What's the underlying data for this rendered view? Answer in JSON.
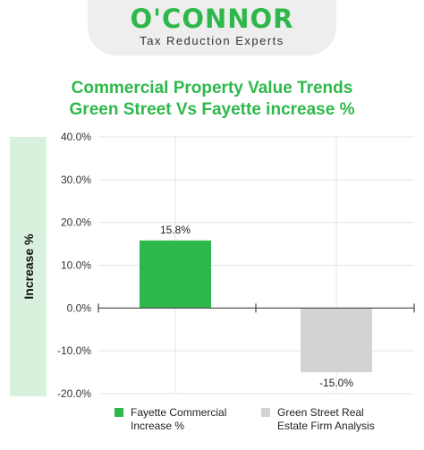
{
  "brand": {
    "logo_text": "O'CONNOR",
    "tagline": "Tax Reduction Experts"
  },
  "colors": {
    "brand_green": "#2eb84b",
    "bar_green": "#2eb84b",
    "bar_gray": "#d3d3d3",
    "ylabel_bg": "#d8f1dd"
  },
  "chart_data": {
    "type": "bar",
    "title_line1": "Commercial Property Value Trends",
    "title_line2": "Green Street Vs Fayette increase %",
    "ylabel": "Increase %",
    "xlabel": "",
    "ylim": [
      -20,
      40
    ],
    "yticks": [
      "40.0%",
      "30.0%",
      "20.0%",
      "10.0%",
      "0.0%",
      "-10.0%",
      "-20.0%"
    ],
    "ytick_values": [
      40,
      30,
      20,
      10,
      0,
      -10,
      -20
    ],
    "grid": true,
    "legend_position": "bottom",
    "series": [
      {
        "name": "Fayette Commercial Increase %",
        "values": [
          15.8
        ],
        "label": "15.8%",
        "color": "#2eb84b"
      },
      {
        "name": "Green Street Real Estate Firm Analysis",
        "values": [
          -15.0
        ],
        "label": "-15.0%",
        "color": "#d3d3d3"
      }
    ]
  }
}
